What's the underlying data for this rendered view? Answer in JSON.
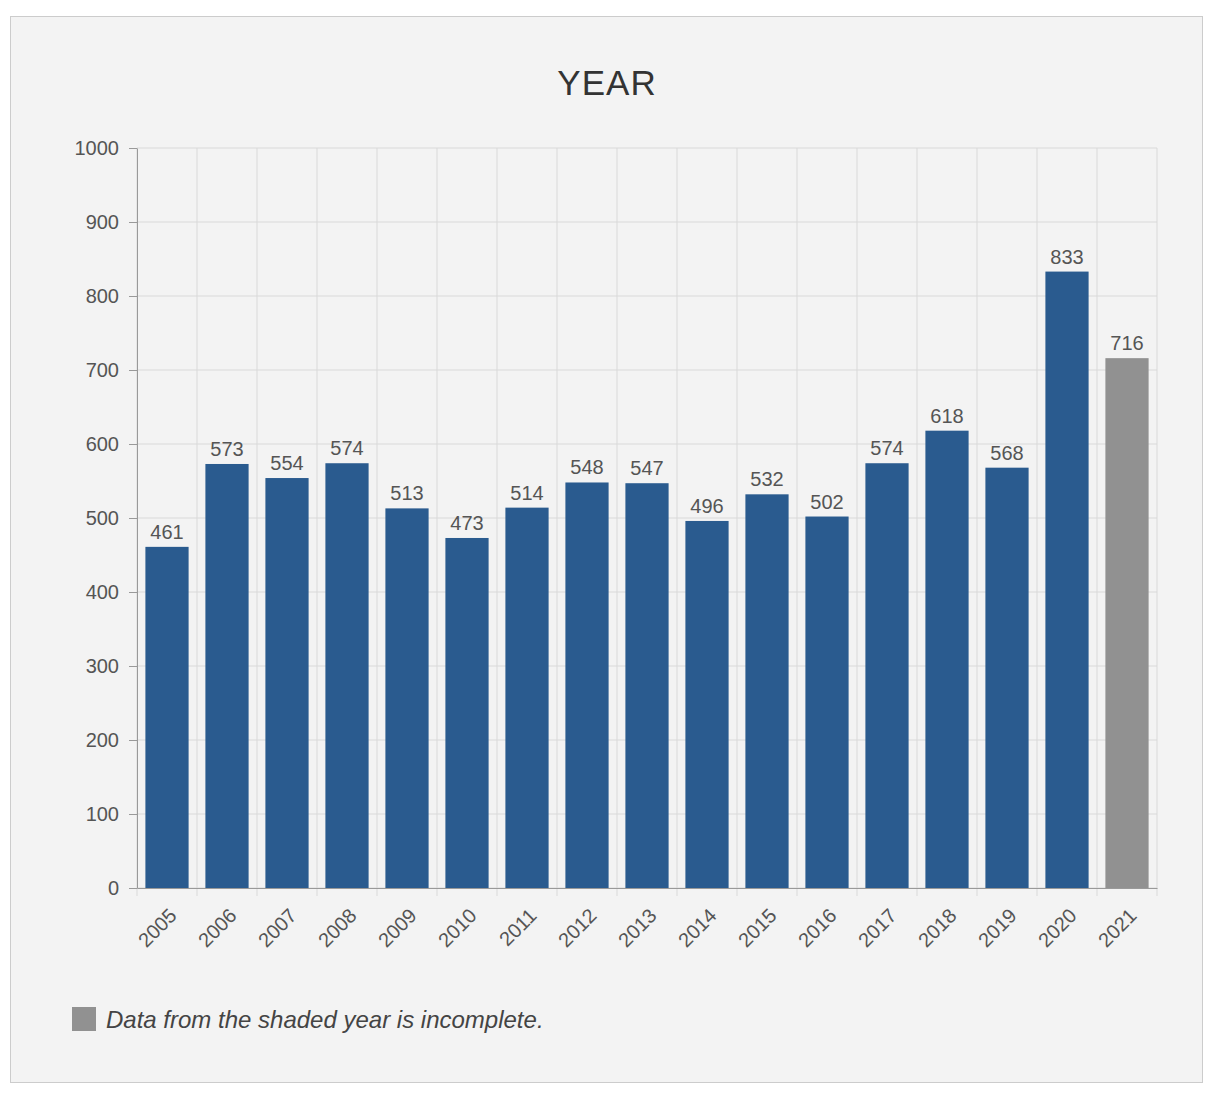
{
  "chart_data": {
    "type": "bar",
    "title": "YEAR",
    "categories": [
      "2005",
      "2006",
      "2007",
      "2008",
      "2009",
      "2010",
      "2011",
      "2012",
      "2013",
      "2014",
      "2015",
      "2016",
      "2017",
      "2018",
      "2019",
      "2020",
      "2021"
    ],
    "values": [
      461,
      573,
      554,
      574,
      513,
      473,
      514,
      548,
      547,
      496,
      532,
      502,
      574,
      618,
      568,
      833,
      716
    ],
    "colors": [
      "#2a5b8f",
      "#2a5b8f",
      "#2a5b8f",
      "#2a5b8f",
      "#2a5b8f",
      "#2a5b8f",
      "#2a5b8f",
      "#2a5b8f",
      "#2a5b8f",
      "#2a5b8f",
      "#2a5b8f",
      "#2a5b8f",
      "#2a5b8f",
      "#2a5b8f",
      "#2a5b8f",
      "#2a5b8f",
      "#919191"
    ],
    "ylim": [
      0,
      1000
    ],
    "yticks": [
      0,
      100,
      200,
      300,
      400,
      500,
      600,
      700,
      800,
      900,
      1000
    ],
    "grid": true,
    "data_labels": true,
    "annotations": [
      {
        "text": "Data from the shaded year is incomplete.",
        "color": "#919191"
      }
    ]
  }
}
